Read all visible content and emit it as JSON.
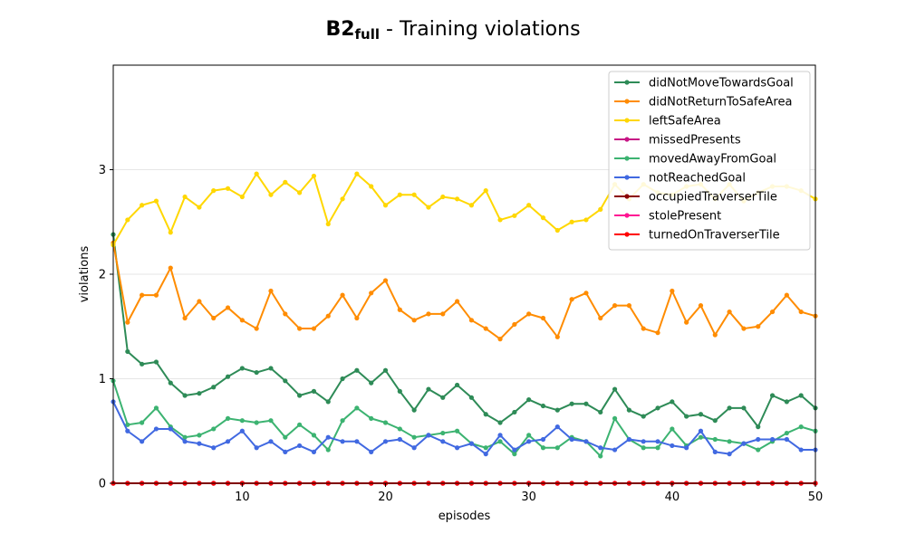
{
  "chart_data": {
    "type": "line",
    "title_main": "B2",
    "title_subscript": "full",
    "title_rest": " - Training violations",
    "xlabel": "episodes",
    "ylabel": "violations",
    "xlim": [
      1,
      50
    ],
    "ylim": [
      0,
      4
    ],
    "xticks": [
      10,
      20,
      30,
      40,
      50
    ],
    "yticks": [
      0,
      1,
      2,
      3
    ],
    "grid": "horizontal",
    "legend_position": "top-right",
    "x": [
      1,
      2,
      3,
      4,
      5,
      6,
      7,
      8,
      9,
      10,
      11,
      12,
      13,
      14,
      15,
      16,
      17,
      18,
      19,
      20,
      21,
      22,
      23,
      24,
      25,
      26,
      27,
      28,
      29,
      30,
      31,
      32,
      33,
      34,
      35,
      36,
      37,
      38,
      39,
      40,
      41,
      42,
      43,
      44,
      45,
      46,
      47,
      48,
      49,
      50
    ],
    "series": [
      {
        "name": "didNotMoveTowardsGoal",
        "color": "#2e8b57",
        "values": [
          2.38,
          1.26,
          1.14,
          1.16,
          0.96,
          0.84,
          0.86,
          0.92,
          1.02,
          1.1,
          1.06,
          1.1,
          0.98,
          0.84,
          0.88,
          0.78,
          1.0,
          1.08,
          0.96,
          1.08,
          0.88,
          0.7,
          0.9,
          0.82,
          0.94,
          0.82,
          0.66,
          0.58,
          0.68,
          0.8,
          0.74,
          0.7,
          0.76,
          0.76,
          0.68,
          0.9,
          0.7,
          0.64,
          0.72,
          0.78,
          0.64,
          0.66,
          0.6,
          0.72,
          0.72,
          0.54,
          0.84,
          0.78,
          0.84,
          0.72
        ]
      },
      {
        "name": "didNotReturnToSafeArea",
        "color": "#ff8c00",
        "values": [
          2.3,
          1.54,
          1.8,
          1.8,
          2.06,
          1.58,
          1.74,
          1.58,
          1.68,
          1.56,
          1.48,
          1.84,
          1.62,
          1.48,
          1.48,
          1.6,
          1.8,
          1.58,
          1.82,
          1.94,
          1.66,
          1.56,
          1.62,
          1.62,
          1.74,
          1.56,
          1.48,
          1.38,
          1.52,
          1.62,
          1.58,
          1.4,
          1.76,
          1.82,
          1.58,
          1.7,
          1.7,
          1.48,
          1.44,
          1.84,
          1.54,
          1.7,
          1.42,
          1.64,
          1.48,
          1.5,
          1.64,
          1.8,
          1.64,
          1.6
        ]
      },
      {
        "name": "leftSafeArea",
        "color": "#ffd700",
        "values": [
          2.28,
          2.52,
          2.66,
          2.7,
          2.4,
          2.74,
          2.64,
          2.8,
          2.82,
          2.74,
          2.96,
          2.76,
          2.88,
          2.78,
          2.94,
          2.48,
          2.72,
          2.96,
          2.84,
          2.66,
          2.76,
          2.76,
          2.64,
          2.74,
          2.72,
          2.66,
          2.8,
          2.52,
          2.56,
          2.66,
          2.54,
          2.42,
          2.5,
          2.52,
          2.62,
          2.86,
          2.72,
          2.86,
          2.78,
          2.76,
          2.84,
          2.86,
          2.72,
          2.86,
          2.7,
          2.78,
          2.84,
          2.84,
          2.8,
          2.72
        ]
      },
      {
        "name": "missedPresents",
        "color": "#c71585",
        "values": [
          0,
          0,
          0,
          0,
          0,
          0,
          0,
          0,
          0,
          0,
          0,
          0,
          0,
          0,
          0,
          0,
          0,
          0,
          0,
          0,
          0,
          0,
          0,
          0,
          0,
          0,
          0,
          0,
          0,
          0,
          0,
          0,
          0,
          0,
          0,
          0,
          0,
          0,
          0,
          0,
          0,
          0,
          0,
          0,
          0,
          0,
          0,
          0,
          0,
          0
        ]
      },
      {
        "name": "movedAwayFromGoal",
        "color": "#3cb371",
        "values": [
          0.98,
          0.56,
          0.58,
          0.72,
          0.54,
          0.44,
          0.46,
          0.52,
          0.62,
          0.6,
          0.58,
          0.6,
          0.44,
          0.56,
          0.46,
          0.32,
          0.6,
          0.72,
          0.62,
          0.58,
          0.52,
          0.44,
          0.46,
          0.48,
          0.5,
          0.38,
          0.34,
          0.4,
          0.28,
          0.46,
          0.34,
          0.34,
          0.44,
          0.4,
          0.26,
          0.62,
          0.42,
          0.34,
          0.34,
          0.52,
          0.36,
          0.44,
          0.42,
          0.4,
          0.38,
          0.32,
          0.4,
          0.48,
          0.54,
          0.5
        ]
      },
      {
        "name": "notReachedGoal",
        "color": "#4169e1",
        "values": [
          0.78,
          0.5,
          0.4,
          0.52,
          0.52,
          0.4,
          0.38,
          0.34,
          0.4,
          0.5,
          0.34,
          0.4,
          0.3,
          0.36,
          0.3,
          0.44,
          0.4,
          0.4,
          0.3,
          0.4,
          0.42,
          0.34,
          0.46,
          0.4,
          0.34,
          0.38,
          0.28,
          0.46,
          0.32,
          0.4,
          0.42,
          0.54,
          0.42,
          0.4,
          0.34,
          0.32,
          0.42,
          0.4,
          0.4,
          0.36,
          0.34,
          0.5,
          0.3,
          0.28,
          0.38,
          0.42,
          0.42,
          0.42,
          0.32,
          0.32
        ]
      },
      {
        "name": "occupiedTraverserTile",
        "color": "#8b0000",
        "values": [
          0,
          0,
          0,
          0,
          0,
          0,
          0,
          0,
          0,
          0,
          0,
          0,
          0,
          0,
          0,
          0,
          0,
          0,
          0,
          0,
          0,
          0,
          0,
          0,
          0,
          0,
          0,
          0,
          0,
          0,
          0,
          0,
          0,
          0,
          0,
          0,
          0,
          0,
          0,
          0,
          0,
          0,
          0,
          0,
          0,
          0,
          0,
          0,
          0,
          0
        ]
      },
      {
        "name": "stolePresent",
        "color": "#ff1493",
        "values": [
          0,
          0,
          0,
          0,
          0,
          0,
          0,
          0,
          0,
          0,
          0,
          0,
          0,
          0,
          0,
          0,
          0,
          0,
          0,
          0,
          0,
          0,
          0,
          0,
          0,
          0,
          0,
          0,
          0,
          0,
          0,
          0,
          0,
          0,
          0,
          0,
          0,
          0,
          0,
          0,
          0,
          0,
          0,
          0,
          0,
          0,
          0,
          0,
          0,
          0
        ]
      },
      {
        "name": "turnedOnTraverserTile",
        "color": "#ff0000",
        "values": [
          0,
          0,
          0,
          0,
          0,
          0,
          0,
          0,
          0,
          0,
          0,
          0,
          0,
          0,
          0,
          0,
          0,
          0,
          0,
          0,
          0,
          0,
          0,
          0,
          0,
          0,
          0,
          0,
          0,
          0,
          0,
          0,
          0,
          0,
          0,
          0,
          0,
          0,
          0,
          0,
          0,
          0,
          0,
          0,
          0,
          0,
          0,
          0,
          0,
          0
        ]
      }
    ]
  }
}
